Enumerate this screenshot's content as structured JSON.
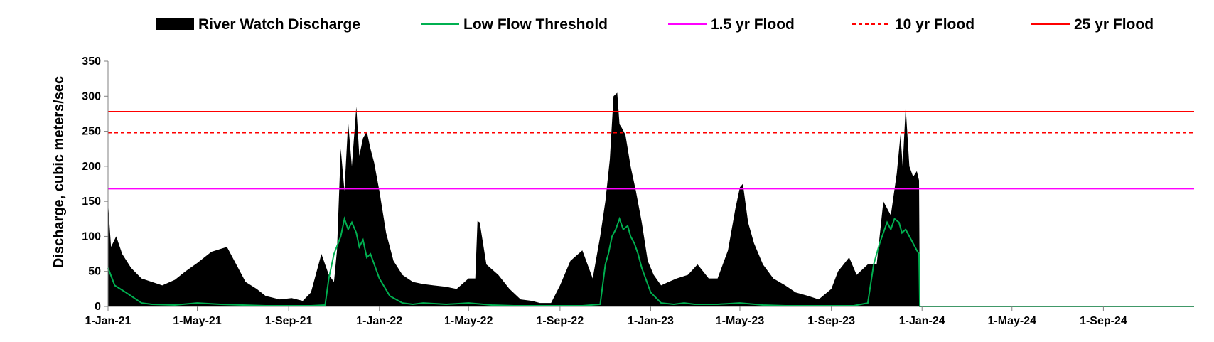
{
  "chart_data": {
    "type": "area",
    "title": "",
    "xlabel": "",
    "ylabel": "Discharge, cubic meters/sec",
    "ylim": [
      0,
      350
    ],
    "yticks": [
      "0",
      "50",
      "100",
      "150",
      "200",
      "250",
      "300",
      "350"
    ],
    "xlim": [
      "2021-01-01",
      "2025-01-01"
    ],
    "xtick_labels": [
      "1-Jan-21",
      "1-May-21",
      "1-Sep-21",
      "1-Jan-22",
      "1-May-22",
      "1-Sep-22",
      "1-Jan-23",
      "1-May-23",
      "1-Sep-23",
      "1-Jan-24",
      "1-May-24",
      "1-Sep-24"
    ],
    "xtick_dates": [
      "2021-01-01",
      "2021-05-01",
      "2021-09-01",
      "2022-01-01",
      "2022-05-01",
      "2022-09-01",
      "2023-01-01",
      "2023-05-01",
      "2023-09-01",
      "2024-01-01",
      "2024-05-01",
      "2024-09-01"
    ],
    "grid": false,
    "legend_position": "top",
    "series": [
      {
        "name": "River Watch Discharge",
        "kind": "area",
        "color": "#000000",
        "x": [
          "2021-01-01",
          "2021-01-05",
          "2021-01-12",
          "2021-01-20",
          "2021-02-01",
          "2021-02-15",
          "2021-03-01",
          "2021-03-15",
          "2021-04-01",
          "2021-04-15",
          "2021-05-01",
          "2021-05-20",
          "2021-06-10",
          "2021-06-25",
          "2021-07-05",
          "2021-07-20",
          "2021-08-01",
          "2021-08-20",
          "2021-09-05",
          "2021-09-20",
          "2021-10-01",
          "2021-10-15",
          "2021-10-25",
          "2021-11-01",
          "2021-11-05",
          "2021-11-10",
          "2021-11-15",
          "2021-11-20",
          "2021-11-25",
          "2021-12-01",
          "2021-12-05",
          "2021-12-10",
          "2021-12-15",
          "2021-12-20",
          "2021-12-25",
          "2022-01-01",
          "2022-01-10",
          "2022-01-20",
          "2022-02-01",
          "2022-02-15",
          "2022-03-01",
          "2022-03-15",
          "2022-04-01",
          "2022-04-15",
          "2022-05-01",
          "2022-05-10",
          "2022-05-13",
          "2022-05-16",
          "2022-05-25",
          "2022-06-10",
          "2022-06-25",
          "2022-07-10",
          "2022-07-25",
          "2022-08-05",
          "2022-08-20",
          "2022-09-01",
          "2022-09-15",
          "2022-10-01",
          "2022-10-15",
          "2022-10-25",
          "2022-11-01",
          "2022-11-07",
          "2022-11-12",
          "2022-11-17",
          "2022-11-20",
          "2022-11-23",
          "2022-11-28",
          "2022-12-05",
          "2022-12-12",
          "2022-12-20",
          "2022-12-28",
          "2023-01-05",
          "2023-01-15",
          "2023-01-25",
          "2023-02-05",
          "2023-02-20",
          "2023-03-05",
          "2023-03-20",
          "2023-04-01",
          "2023-04-15",
          "2023-04-25",
          "2023-05-01",
          "2023-05-05",
          "2023-05-12",
          "2023-05-20",
          "2023-06-01",
          "2023-06-15",
          "2023-07-01",
          "2023-07-15",
          "2023-08-01",
          "2023-08-15",
          "2023-09-01",
          "2023-09-10",
          "2023-09-25",
          "2023-10-05",
          "2023-10-20",
          "2023-11-01",
          "2023-11-10",
          "2023-11-20",
          "2023-11-28",
          "2023-12-03",
          "2023-12-06",
          "2023-12-10",
          "2023-12-15",
          "2023-12-20",
          "2023-12-25",
          "2023-12-28",
          "2023-12-29"
        ],
        "y": [
          148,
          85,
          100,
          75,
          55,
          40,
          35,
          30,
          38,
          50,
          62,
          78,
          85,
          55,
          35,
          25,
          15,
          10,
          12,
          8,
          20,
          75,
          45,
          35,
          80,
          225,
          165,
          263,
          200,
          285,
          215,
          240,
          250,
          225,
          205,
          165,
          105,
          65,
          45,
          35,
          32,
          30,
          28,
          25,
          40,
          40,
          122,
          120,
          60,
          45,
          25,
          10,
          8,
          5,
          5,
          30,
          65,
          80,
          40,
          100,
          150,
          210,
          300,
          305,
          260,
          255,
          245,
          200,
          165,
          120,
          65,
          45,
          30,
          35,
          40,
          45,
          60,
          40,
          40,
          80,
          140,
          170,
          175,
          120,
          90,
          60,
          40,
          30,
          20,
          15,
          10,
          25,
          50,
          70,
          45,
          60,
          60,
          150,
          130,
          190,
          245,
          200,
          285,
          200,
          185,
          193,
          180,
          0
        ]
      },
      {
        "name": "Low Flow Threshold",
        "kind": "line",
        "color": "#00b050",
        "x": [
          "2021-01-01",
          "2021-01-10",
          "2021-01-25",
          "2021-02-15",
          "2021-03-01",
          "2021-04-01",
          "2021-05-01",
          "2021-06-01",
          "2021-07-01",
          "2021-08-01",
          "2021-09-01",
          "2021-10-01",
          "2021-10-20",
          "2021-10-25",
          "2021-11-01",
          "2021-11-10",
          "2021-11-15",
          "2021-11-20",
          "2021-11-25",
          "2021-12-01",
          "2021-12-05",
          "2021-12-10",
          "2021-12-15",
          "2021-12-20",
          "2022-01-01",
          "2022-01-15",
          "2022-02-01",
          "2022-02-15",
          "2022-03-01",
          "2022-04-01",
          "2022-05-01",
          "2022-06-01",
          "2022-07-01",
          "2022-08-01",
          "2022-09-01",
          "2022-10-01",
          "2022-10-25",
          "2022-11-01",
          "2022-11-05",
          "2022-11-10",
          "2022-11-15",
          "2022-11-20",
          "2022-11-25",
          "2022-12-01",
          "2022-12-05",
          "2022-12-10",
          "2022-12-15",
          "2022-12-20",
          "2023-01-01",
          "2023-01-15",
          "2023-02-01",
          "2023-02-15",
          "2023-03-01",
          "2023-04-01",
          "2023-05-01",
          "2023-06-01",
          "2023-07-01",
          "2023-08-01",
          "2023-09-01",
          "2023-10-01",
          "2023-10-20",
          "2023-10-28",
          "2023-11-05",
          "2023-11-10",
          "2023-11-15",
          "2023-11-20",
          "2023-11-25",
          "2023-12-01",
          "2023-12-05",
          "2023-12-10",
          "2023-12-15",
          "2023-12-20",
          "2023-12-25",
          "2023-12-28",
          "2023-12-29",
          "2025-01-01"
        ],
        "y": [
          55,
          30,
          20,
          5,
          3,
          2,
          5,
          3,
          2,
          1,
          1,
          1,
          2,
          40,
          75,
          100,
          125,
          110,
          120,
          105,
          85,
          95,
          70,
          75,
          40,
          15,
          5,
          3,
          5,
          3,
          5,
          2,
          1,
          1,
          1,
          1,
          3,
          60,
          75,
          100,
          110,
          125,
          110,
          115,
          100,
          90,
          75,
          55,
          20,
          5,
          3,
          5,
          3,
          3,
          5,
          2,
          1,
          1,
          1,
          1,
          5,
          60,
          90,
          105,
          120,
          110,
          125,
          120,
          105,
          110,
          100,
          90,
          80,
          75,
          0,
          0
        ]
      },
      {
        "name": "1.5 yr Flood",
        "kind": "hline",
        "color": "#ff00ff",
        "dash": "solid",
        "value": 168
      },
      {
        "name": "10 yr Flood",
        "kind": "hline",
        "color": "#ff0000",
        "dash": "dashed",
        "value": 248
      },
      {
        "name": "25 yr Flood",
        "kind": "hline",
        "color": "#ff0000",
        "dash": "solid",
        "value": 278
      }
    ]
  }
}
